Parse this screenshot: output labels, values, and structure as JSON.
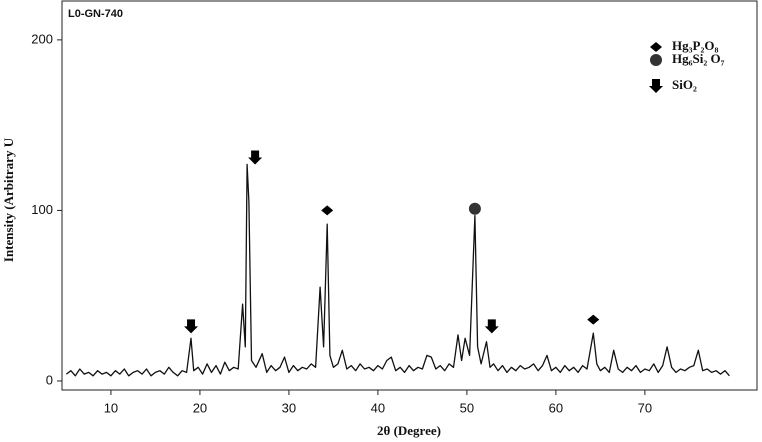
{
  "chart_data": {
    "type": "line",
    "title": "L0-GN-740",
    "x_label": "2θ (Degree)",
    "y_label": "Intensity (Arbitrary U",
    "xlim": [
      4.5,
      82.6
    ],
    "ylim": [
      -5.3,
      222.8
    ],
    "xticks": [
      10,
      20,
      30,
      40,
      50,
      60,
      70
    ],
    "yticks": [
      0,
      100,
      200
    ],
    "x": [
      5,
      5.5,
      6,
      6.5,
      7,
      7.5,
      8,
      8.5,
      9,
      9.5,
      10,
      10.5,
      11,
      11.5,
      12,
      12.5,
      13,
      13.5,
      14,
      14.5,
      15,
      15.5,
      16,
      16.5,
      17,
      17.5,
      18,
      18.5,
      19,
      19.3,
      19.8,
      20.3,
      20.8,
      21.3,
      21.8,
      22.3,
      22.8,
      23.3,
      23.8,
      24.3,
      24.8,
      25.1,
      25.3,
      25.5,
      25.8,
      26.3,
      27,
      27.5,
      28,
      28.5,
      29,
      29.5,
      30,
      30.5,
      31,
      31.5,
      32,
      32.5,
      33,
      33.5,
      33.9,
      34.3,
      34.6,
      35,
      35.5,
      36,
      36.5,
      37,
      37.5,
      38,
      38.5,
      39,
      39.5,
      40,
      40.5,
      41,
      41.5,
      42,
      42.5,
      43,
      43.5,
      44,
      44.5,
      45,
      45.5,
      46,
      46.5,
      47,
      47.5,
      48,
      48.5,
      49,
      49.4,
      49.8,
      50.3,
      50.9,
      51.2,
      51.6,
      52.2,
      52.6,
      53,
      53.5,
      54,
      54.5,
      55,
      55.5,
      56,
      56.5,
      57,
      57.5,
      58,
      58.5,
      59,
      59.5,
      60,
      60.5,
      61,
      61.5,
      62,
      62.5,
      63,
      63.5,
      64.2,
      64.6,
      65,
      65.5,
      66,
      66.5,
      67,
      67.5,
      68,
      68.5,
      69,
      69.5,
      70,
      70.5,
      71,
      71.5,
      72,
      72.5,
      73,
      73.5,
      74,
      74.5,
      75,
      75.5,
      76,
      76.5,
      77,
      77.5,
      78,
      78.5,
      79,
      79.5
    ],
    "series": [
      {
        "name": "L0-GN-740",
        "color": "#111111",
        "values": [
          4,
          6,
          3,
          7,
          4,
          5,
          3,
          6,
          4,
          5,
          3,
          6,
          4,
          7,
          3,
          5,
          6,
          4,
          7,
          3,
          5,
          6,
          4,
          8,
          5,
          3,
          6,
          5,
          25,
          6,
          8,
          4,
          10,
          5,
          9,
          4,
          11,
          6,
          8,
          7,
          45,
          20,
          127,
          105,
          12,
          8,
          16,
          5,
          9,
          6,
          8,
          14,
          5,
          9,
          6,
          8,
          7,
          10,
          8,
          55,
          20,
          92,
          15,
          8,
          10,
          18,
          7,
          9,
          6,
          10,
          7,
          8,
          6,
          9,
          7,
          12,
          14,
          6,
          8,
          5,
          9,
          6,
          8,
          7,
          15,
          14,
          7,
          9,
          6,
          10,
          8,
          27,
          12,
          25,
          15,
          97,
          20,
          10,
          23,
          8,
          10,
          6,
          9,
          5,
          8,
          6,
          9,
          7,
          8,
          10,
          6,
          9,
          15,
          6,
          8,
          5,
          9,
          6,
          8,
          5,
          9,
          7,
          28,
          10,
          6,
          8,
          5,
          18,
          7,
          5,
          8,
          6,
          9,
          5,
          7,
          6,
          10,
          5,
          9,
          20,
          8,
          5,
          7,
          6,
          8,
          9,
          18,
          6,
          7,
          5,
          6,
          4,
          6,
          3
        ]
      }
    ],
    "markers": [
      {
        "name": "Hg₃P₂O₈",
        "shape": "diamond",
        "color": "#000000",
        "x": [
          34.3,
          64.2
        ],
        "y": [
          100,
          36
        ]
      },
      {
        "name": "Hg₆Si₂ O₇",
        "shape": "circle",
        "color": "#333333",
        "x": [
          50.9
        ],
        "y": [
          101
        ]
      },
      {
        "name": "SiO₂",
        "shape": "arrow",
        "color": "#000000",
        "x": [
          19,
          26.2,
          52.8
        ],
        "y": [
          32,
          131,
          32
        ]
      }
    ]
  }
}
